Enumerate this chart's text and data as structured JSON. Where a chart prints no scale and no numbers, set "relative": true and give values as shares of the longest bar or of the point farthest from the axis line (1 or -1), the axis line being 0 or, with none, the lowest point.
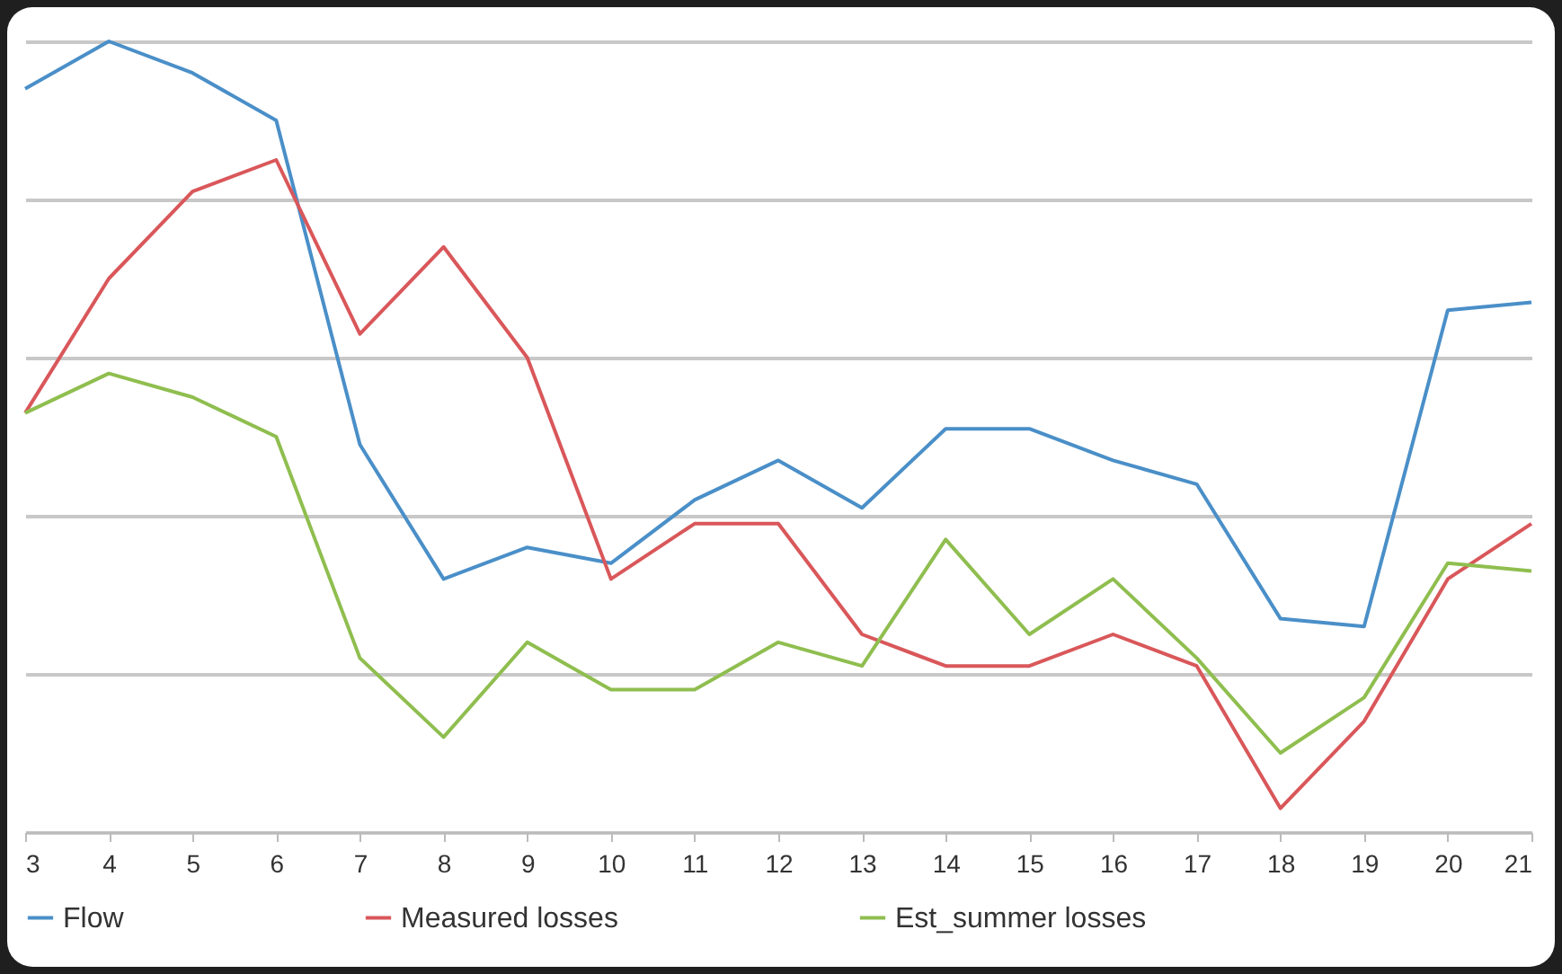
{
  "chart_data": {
    "type": "line",
    "relative": true,
    "categories": [
      "3",
      "4",
      "5",
      "6",
      "7",
      "8",
      "9",
      "10",
      "11",
      "12",
      "13",
      "14",
      "15",
      "16",
      "17",
      "18",
      "19",
      "20",
      "21"
    ],
    "series": [
      {
        "name": "Flow",
        "color": "#4a8fc8",
        "values": [
          0.94,
          1.0,
          0.96,
          0.9,
          0.49,
          0.32,
          0.36,
          0.34,
          0.42,
          0.47,
          0.41,
          0.51,
          0.51,
          0.47,
          0.44,
          0.27,
          0.26,
          0.66,
          0.67
        ]
      },
      {
        "name": "Measured losses",
        "color": "#d9575a",
        "values": [
          0.53,
          0.7,
          0.81,
          0.85,
          0.63,
          0.74,
          0.6,
          0.32,
          0.39,
          0.39,
          0.25,
          0.21,
          0.21,
          0.25,
          0.21,
          0.03,
          0.14,
          0.32,
          0.39
        ]
      },
      {
        "name": "Est_summer losses",
        "color": "#8fbe4f",
        "values": [
          0.53,
          0.58,
          0.55,
          0.5,
          0.22,
          0.12,
          0.24,
          0.18,
          0.18,
          0.24,
          0.21,
          0.37,
          0.25,
          0.32,
          0.22,
          0.1,
          0.17,
          0.34,
          0.33
        ]
      }
    ],
    "grid": "y",
    "legend": "bottom",
    "tick_labels": "x",
    "marker": "none",
    "line_style": "solid"
  }
}
